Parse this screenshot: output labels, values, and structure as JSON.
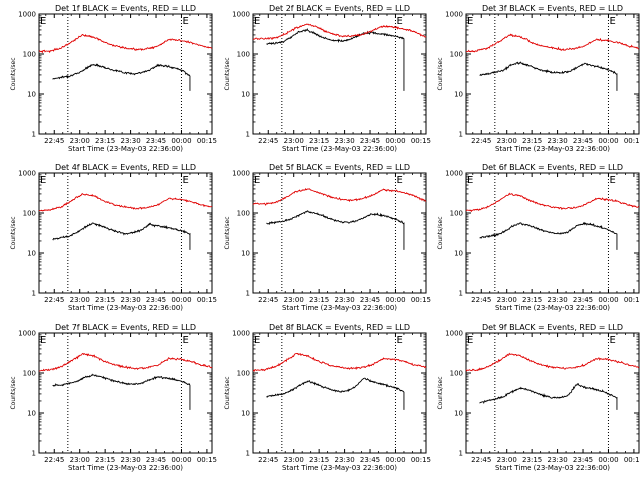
{
  "colors": {
    "events": "#000000",
    "lld": "#e00000",
    "axis": "#000000",
    "background": "#ffffff"
  },
  "chart_data": [
    {
      "type": "line",
      "title": "Det 1f BLACK = Events, RED = LLD",
      "xlabel": "Start Time (23-May-03 22:36:00)",
      "ylabel": "Counts/sec",
      "ylog": true,
      "ylim": [
        1,
        1000
      ],
      "xlim": [
        "22:36",
        "00:18"
      ],
      "x_tick_labels": [
        "22:45",
        "23:00",
        "23:15",
        "23:30",
        "23:45",
        "00:00",
        "00:15"
      ],
      "y_tick_labels": [
        "1",
        "10",
        "100",
        "1000"
      ],
      "marker_labels": [
        "E",
        "E"
      ],
      "event_lines": [
        "22:53",
        "00:00"
      ],
      "black_start": "22:44",
      "black_end": "00:05",
      "black_final": 12,
      "series": [
        {
          "name": "Events",
          "values": [
            24,
            26,
            28,
            32,
            42,
            55,
            50,
            42,
            38,
            34,
            32,
            34,
            40,
            52,
            50,
            45,
            40,
            28
          ]
        },
        {
          "name": "LLD",
          "values": [
            115,
            120,
            140,
            200,
            300,
            270,
            200,
            160,
            140,
            130,
            135,
            160,
            230,
            220,
            195,
            160,
            140
          ]
        }
      ]
    },
    {
      "type": "line",
      "title": "Det 2f BLACK = Events, RED = LLD",
      "xlabel": "Start Time (23-May-03 22:36:00)",
      "ylabel": "Counts/sec",
      "ylog": true,
      "ylim": [
        1,
        1000
      ],
      "xlim": [
        "22:36",
        "00:18"
      ],
      "x_tick_labels": [
        "22:45",
        "23:00",
        "23:15",
        "23:30",
        "23:45",
        "00:00",
        "00:15"
      ],
      "y_tick_labels": [
        "1",
        "10",
        "100",
        "1000"
      ],
      "marker_labels": [
        "E",
        "E"
      ],
      "event_lines": [
        "22:53",
        "00:00"
      ],
      "black_start": "22:44",
      "black_end": "00:05",
      "black_final": 12,
      "series": [
        {
          "name": "Events",
          "values": [
            180,
            185,
            200,
            260,
            360,
            400,
            320,
            260,
            220,
            210,
            220,
            270,
            330,
            340,
            320,
            300,
            280,
            240
          ]
        },
        {
          "name": "LLD",
          "values": [
            240,
            240,
            250,
            320,
            450,
            560,
            460,
            340,
            290,
            280,
            300,
            380,
            500,
            470,
            420,
            360,
            260
          ]
        }
      ]
    },
    {
      "type": "line",
      "title": "Det 3f BLACK = Events, RED = LLD",
      "xlabel": "Start Time (23-May-03 22:36:00)",
      "ylabel": "Counts/sec",
      "ylog": true,
      "ylim": [
        1,
        1000
      ],
      "xlim": [
        "22:36",
        "00:18"
      ],
      "x_tick_labels": [
        "22:45",
        "23:00",
        "23:15",
        "23:30",
        "23:45",
        "00:00",
        "00:15"
      ],
      "y_tick_labels": [
        "1",
        "10",
        "100",
        "1000"
      ],
      "marker_labels": [
        "E",
        "E"
      ],
      "event_lines": [
        "22:53",
        "00:00"
      ],
      "black_start": "22:44",
      "black_end": "00:05",
      "black_final": 12,
      "series": [
        {
          "name": "Events",
          "values": [
            30,
            32,
            35,
            40,
            55,
            60,
            52,
            44,
            38,
            35,
            34,
            36,
            45,
            58,
            52,
            46,
            40,
            32
          ]
        },
        {
          "name": "LLD",
          "values": [
            115,
            120,
            140,
            200,
            300,
            270,
            200,
            160,
            140,
            130,
            135,
            160,
            230,
            220,
            195,
            160,
            140
          ]
        }
      ]
    },
    {
      "type": "line",
      "title": "Det 4f BLACK = Events, RED = LLD",
      "xlabel": "Start Time (23-May-03 22:36:00)",
      "ylabel": "Counts/sec",
      "ylog": true,
      "ylim": [
        1,
        1000
      ],
      "xlim": [
        "22:36",
        "00:18"
      ],
      "x_tick_labels": [
        "22:45",
        "23:00",
        "23:15",
        "23:30",
        "23:45",
        "00:00",
        "00:15"
      ],
      "y_tick_labels": [
        "1",
        "10",
        "100",
        "1000"
      ],
      "marker_labels": [
        "E",
        "E"
      ],
      "event_lines": [
        "22:53",
        "00:00"
      ],
      "black_start": "22:44",
      "black_end": "00:05",
      "black_final": 12,
      "series": [
        {
          "name": "Events",
          "values": [
            22,
            24,
            26,
            32,
            44,
            55,
            48,
            40,
            34,
            30,
            32,
            38,
            52,
            48,
            44,
            40,
            36,
            30
          ]
        },
        {
          "name": "LLD",
          "values": [
            115,
            120,
            140,
            200,
            300,
            270,
            200,
            160,
            140,
            130,
            135,
            160,
            230,
            220,
            195,
            160,
            140
          ]
        }
      ]
    },
    {
      "type": "line",
      "title": "Det 5f BLACK = Events, RED = LLD",
      "xlabel": "Start Time (23-May-03 22:36:00)",
      "ylabel": "Counts/sec",
      "ylog": true,
      "ylim": [
        1,
        1000
      ],
      "xlim": [
        "22:36",
        "00:18"
      ],
      "x_tick_labels": [
        "22:45",
        "23:00",
        "23:15",
        "23:30",
        "23:45",
        "00:00",
        "00:15"
      ],
      "y_tick_labels": [
        "1",
        "10",
        "100",
        "1000"
      ],
      "marker_labels": [
        "E",
        "E"
      ],
      "event_lines": [
        "22:53",
        "00:00"
      ],
      "black_start": "22:44",
      "black_end": "00:05",
      "black_final": 12,
      "series": [
        {
          "name": "Events",
          "values": [
            55,
            58,
            62,
            70,
            90,
            110,
            100,
            85,
            70,
            62,
            58,
            62,
            75,
            95,
            90,
            82,
            70,
            55
          ]
        },
        {
          "name": "LLD",
          "values": [
            170,
            170,
            180,
            240,
            350,
            400,
            330,
            260,
            220,
            210,
            220,
            280,
            380,
            360,
            320,
            260,
            200
          ]
        }
      ]
    },
    {
      "type": "line",
      "title": "Det 6f BLACK = Events, RED = LLD",
      "xlabel": "Start Time (23-May-03 22:36:00)",
      "ylabel": "Counts/sec",
      "ylog": true,
      "ylim": [
        1,
        1000
      ],
      "xlim": [
        "22:36",
        "00:18"
      ],
      "x_tick_labels": [
        "22:45",
        "23:00",
        "23:15",
        "23:30",
        "23:45",
        "00:00",
        "00:15"
      ],
      "y_tick_labels": [
        "1",
        "10",
        "100",
        "1000"
      ],
      "marker_labels": [
        "E",
        "E"
      ],
      "event_lines": [
        "22:53",
        "00:00"
      ],
      "black_start": "22:44",
      "black_end": "00:05",
      "black_final": 12,
      "series": [
        {
          "name": "Events",
          "values": [
            24,
            26,
            28,
            34,
            46,
            55,
            50,
            42,
            36,
            32,
            30,
            34,
            48,
            55,
            50,
            44,
            38,
            30
          ]
        },
        {
          "name": "LLD",
          "values": [
            115,
            120,
            140,
            200,
            300,
            270,
            200,
            160,
            140,
            130,
            135,
            160,
            230,
            220,
            195,
            160,
            140
          ]
        }
      ]
    },
    {
      "type": "line",
      "title": "Det 7f BLACK = Events, RED = LLD",
      "xlabel": "Start Time (23-May-03 22:36:00)",
      "ylabel": "Counts/sec",
      "ylog": true,
      "ylim": [
        1,
        1000
      ],
      "xlim": [
        "22:36",
        "00:18"
      ],
      "x_tick_labels": [
        "22:45",
        "23:00",
        "23:15",
        "23:30",
        "23:45",
        "00:00",
        "00:15"
      ],
      "y_tick_labels": [
        "1",
        "10",
        "100",
        "1000"
      ],
      "marker_labels": [
        "E",
        "E"
      ],
      "event_lines": [
        "22:53",
        "00:00"
      ],
      "black_start": "22:44",
      "black_end": "00:05",
      "black_final": 12,
      "series": [
        {
          "name": "Events",
          "values": [
            50,
            50,
            55,
            62,
            78,
            90,
            80,
            68,
            60,
            55,
            52,
            56,
            68,
            80,
            75,
            70,
            62,
            50
          ]
        },
        {
          "name": "LLD",
          "values": [
            115,
            120,
            140,
            200,
            300,
            270,
            200,
            160,
            140,
            130,
            135,
            160,
            230,
            220,
            195,
            160,
            140
          ]
        }
      ]
    },
    {
      "type": "line",
      "title": "Det 8f BLACK = Events, RED = LLD",
      "xlabel": "Start Time (23-May-03 22:36:00)",
      "ylabel": "Counts/sec",
      "ylog": true,
      "ylim": [
        1,
        1000
      ],
      "xlim": [
        "22:36",
        "00:18"
      ],
      "x_tick_labels": [
        "22:45",
        "23:00",
        "23:15",
        "23:30",
        "23:45",
        "00:00",
        "00:15"
      ],
      "y_tick_labels": [
        "1",
        "10",
        "100",
        "1000"
      ],
      "marker_labels": [
        "E",
        "E"
      ],
      "event_lines": [
        "22:53",
        "00:00"
      ],
      "black_start": "22:44",
      "black_end": "00:05",
      "black_final": 12,
      "series": [
        {
          "name": "Events",
          "values": [
            26,
            28,
            30,
            36,
            48,
            62,
            55,
            45,
            38,
            34,
            36,
            45,
            75,
            62,
            55,
            48,
            42,
            34
          ]
        },
        {
          "name": "LLD",
          "values": [
            115,
            120,
            140,
            200,
            300,
            270,
            200,
            160,
            140,
            130,
            135,
            160,
            230,
            220,
            195,
            160,
            140
          ]
        }
      ]
    },
    {
      "type": "line",
      "title": "Det 9f BLACK = Events, RED = LLD",
      "xlabel": "Start Time (23-May-03 22:36:00)",
      "ylabel": "Counts/sec",
      "ylog": true,
      "ylim": [
        1,
        1000
      ],
      "xlim": [
        "22:36",
        "00:18"
      ],
      "x_tick_labels": [
        "22:45",
        "23:00",
        "23:15",
        "23:30",
        "23:45",
        "00:00",
        "00:15"
      ],
      "y_tick_labels": [
        "1",
        "10",
        "100",
        "1000"
      ],
      "marker_labels": [
        "E",
        "E"
      ],
      "event_lines": [
        "22:53",
        "00:00"
      ],
      "black_start": "22:44",
      "black_end": "00:05",
      "black_final": 12,
      "series": [
        {
          "name": "Events",
          "values": [
            18,
            20,
            22,
            26,
            34,
            42,
            38,
            32,
            27,
            24,
            24,
            28,
            52,
            44,
            40,
            36,
            30,
            24
          ]
        },
        {
          "name": "LLD",
          "values": [
            115,
            120,
            140,
            200,
            300,
            270,
            200,
            160,
            140,
            130,
            135,
            160,
            230,
            220,
            195,
            160,
            140
          ]
        }
      ]
    }
  ]
}
